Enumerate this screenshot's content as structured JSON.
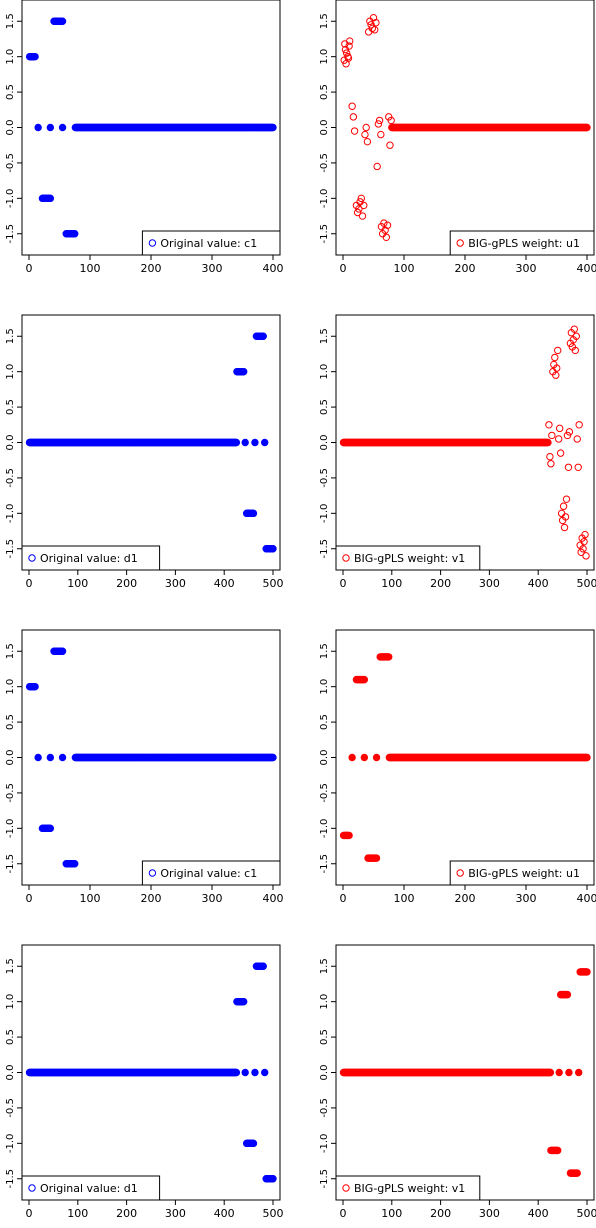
{
  "figure": {
    "panels": [
      {
        "title": "",
        "legend": "Original value: c1",
        "color": "#0000ff",
        "xlim": [
          0,
          400
        ],
        "xticks": [
          0,
          100,
          200,
          300,
          400
        ],
        "yticks": [
          1.5,
          1.0,
          0.5,
          0.0,
          -0.5,
          -1.0,
          -1.5
        ],
        "legend_position": "bottom-right"
      },
      {
        "title": "",
        "legend": "BIG-gPLS weight: u1",
        "color": "#ff0000",
        "xlim": [
          0,
          400
        ],
        "xticks": [
          0,
          100,
          200,
          300,
          400
        ],
        "yticks": [
          1.5,
          1.0,
          0.5,
          0.0,
          -0.5,
          -1.0,
          -1.5
        ],
        "legend_position": "bottom-right"
      },
      {
        "title": "",
        "legend": "Original value: d1",
        "color": "#0000ff",
        "xlim": [
          0,
          500
        ],
        "xticks": [
          0,
          100,
          200,
          300,
          400,
          500
        ],
        "yticks": [
          1.5,
          1.0,
          0.5,
          0.0,
          -0.5,
          -1.0,
          -1.5
        ],
        "legend_position": "bottom-left"
      },
      {
        "title": "",
        "legend": "BIG-gPLS weight: v1",
        "color": "#ff0000",
        "xlim": [
          0,
          500
        ],
        "xticks": [
          0,
          100,
          200,
          300,
          400,
          500
        ],
        "yticks": [
          1.5,
          1.0,
          0.5,
          0.0,
          -0.5,
          -1.0,
          -1.5
        ],
        "legend_position": "bottom-left"
      },
      {
        "title": "",
        "legend": "Original value: c1",
        "color": "#0000ff",
        "xlim": [
          0,
          400
        ],
        "xticks": [
          0,
          100,
          200,
          300,
          400
        ],
        "yticks": [
          1.5,
          1.0,
          0.5,
          0.0,
          -0.5,
          -1.0,
          -1.5
        ],
        "legend_position": "bottom-right"
      },
      {
        "title": "",
        "legend": "BIG-gPLS weight: u1",
        "color": "#ff0000",
        "xlim": [
          0,
          400
        ],
        "xticks": [
          0,
          100,
          200,
          300,
          400
        ],
        "yticks": [
          1.5,
          1.0,
          0.5,
          0.0,
          -0.5,
          -1.0,
          -1.5
        ],
        "legend_position": "bottom-right"
      },
      {
        "title": "",
        "legend": "Original value: d1",
        "color": "#0000ff",
        "xlim": [
          0,
          500
        ],
        "xticks": [
          0,
          100,
          200,
          300,
          400,
          500
        ],
        "yticks": [
          1.5,
          1.0,
          0.5,
          0.0,
          -0.5,
          -1.0,
          -1.5
        ],
        "legend_position": "bottom-left"
      },
      {
        "title": "",
        "legend": "BIG-gPLS weight: v1",
        "color": "#ff0000",
        "xlim": [
          0,
          500
        ],
        "xticks": [
          0,
          100,
          200,
          300,
          400,
          500
        ],
        "yticks": [
          1.5,
          1.0,
          0.5,
          0.0,
          -0.5,
          -1.0,
          -1.5
        ],
        "legend_position": "bottom-left"
      }
    ]
  },
  "chart_data": [
    {
      "type": "scatter",
      "legend": "Original value: c1",
      "color": "#0000ff",
      "marker": "filled-circle",
      "groups": [
        {
          "x_range": [
            1,
            10
          ],
          "y": 1.0
        },
        {
          "x_range": [
            41,
            55
          ],
          "y": 1.5
        },
        {
          "x_range": [
            22,
            35
          ],
          "y": -1.0
        },
        {
          "x_range": [
            61,
            75
          ],
          "y": -1.5
        },
        {
          "x_points": [
            15,
            35,
            55
          ],
          "y": 0.0
        },
        {
          "x_range": [
            76,
            400
          ],
          "y": 0.0
        }
      ],
      "xlim": [
        0,
        400
      ],
      "ylim": [
        -1.8,
        1.8
      ]
    },
    {
      "type": "scatter",
      "legend": "BIG-gPLS weight: u1",
      "color": "#ff0000",
      "marker": "open-circle",
      "points": [
        [
          2,
          0.95
        ],
        [
          4,
          1.1
        ],
        [
          6,
          1.05
        ],
        [
          8,
          1.0
        ],
        [
          10,
          1.15
        ],
        [
          3,
          1.18
        ],
        [
          5,
          0.9
        ],
        [
          9,
          0.98
        ],
        [
          11,
          1.22
        ],
        [
          15,
          0.3
        ],
        [
          17,
          0.15
        ],
        [
          19,
          -0.05
        ],
        [
          22,
          -1.1
        ],
        [
          24,
          -1.2
        ],
        [
          26,
          -1.15
        ],
        [
          28,
          -1.05
        ],
        [
          30,
          -1.0
        ],
        [
          32,
          -1.25
        ],
        [
          34,
          -1.1
        ],
        [
          36,
          -0.1
        ],
        [
          38,
          0.0
        ],
        [
          40,
          -0.2
        ],
        [
          42,
          1.35
        ],
        [
          44,
          1.5
        ],
        [
          46,
          1.45
        ],
        [
          48,
          1.4
        ],
        [
          50,
          1.55
        ],
        [
          52,
          1.38
        ],
        [
          54,
          1.48
        ],
        [
          56,
          -0.55
        ],
        [
          58,
          0.05
        ],
        [
          60,
          0.1
        ],
        [
          62,
          -0.1
        ],
        [
          63,
          -1.4
        ],
        [
          65,
          -1.5
        ],
        [
          67,
          -1.35
        ],
        [
          69,
          -1.45
        ],
        [
          71,
          -1.55
        ],
        [
          73,
          -1.38
        ],
        [
          75,
          0.15
        ],
        [
          77,
          -0.25
        ],
        [
          79,
          0.1
        ]
      ],
      "zero_range": [
        80,
        400
      ],
      "xlim": [
        0,
        400
      ],
      "ylim": [
        -1.8,
        1.8
      ]
    },
    {
      "type": "scatter",
      "legend": "Original value: d1",
      "color": "#0000ff",
      "marker": "filled-circle",
      "groups": [
        {
          "x_range": [
            1,
            425
          ],
          "y": 0.0
        },
        {
          "x_range": [
            426,
            440
          ],
          "y": 1.0
        },
        {
          "x_range": [
            446,
            460
          ],
          "y": -1.0
        },
        {
          "x_range": [
            466,
            480
          ],
          "y": 1.5
        },
        {
          "x_range": [
            486,
            500
          ],
          "y": -1.5
        },
        {
          "x_points": [
            443,
            463,
            483
          ],
          "y": 0.0
        }
      ],
      "xlim": [
        0,
        500
      ],
      "ylim": [
        -1.8,
        1.8
      ]
    },
    {
      "type": "scatter",
      "legend": "BIG-gPLS weight: v1",
      "color": "#ff0000",
      "marker": "open-circle",
      "points": [
        [
          422,
          0.25
        ],
        [
          424,
          -0.2
        ],
        [
          426,
          -0.3
        ],
        [
          428,
          0.1
        ],
        [
          430,
          1.0
        ],
        [
          432,
          1.1
        ],
        [
          434,
          1.2
        ],
        [
          436,
          0.95
        ],
        [
          438,
          1.05
        ],
        [
          440,
          1.3
        ],
        [
          442,
          0.05
        ],
        [
          444,
          0.2
        ],
        [
          446,
          -0.15
        ],
        [
          448,
          -1.0
        ],
        [
          450,
          -1.1
        ],
        [
          452,
          -0.9
        ],
        [
          454,
          -1.2
        ],
        [
          456,
          -1.05
        ],
        [
          458,
          -0.8
        ],
        [
          460,
          0.1
        ],
        [
          462,
          -0.35
        ],
        [
          464,
          0.15
        ],
        [
          466,
          1.4
        ],
        [
          468,
          1.55
        ],
        [
          470,
          1.35
        ],
        [
          472,
          1.45
        ],
        [
          474,
          1.6
        ],
        [
          476,
          1.3
        ],
        [
          478,
          1.5
        ],
        [
          480,
          0.05
        ],
        [
          482,
          -0.35
        ],
        [
          484,
          0.25
        ],
        [
          486,
          -1.45
        ],
        [
          488,
          -1.55
        ],
        [
          490,
          -1.35
        ],
        [
          492,
          -1.5
        ],
        [
          494,
          -1.4
        ],
        [
          496,
          -1.3
        ],
        [
          498,
          -1.6
        ]
      ],
      "zero_range": [
        1,
        420
      ],
      "xlim": [
        0,
        500
      ],
      "ylim": [
        -1.8,
        1.8
      ]
    },
    {
      "type": "scatter",
      "legend": "Original value: c1",
      "color": "#0000ff",
      "marker": "filled-circle",
      "groups": [
        {
          "x_range": [
            1,
            10
          ],
          "y": 1.0
        },
        {
          "x_range": [
            41,
            55
          ],
          "y": 1.5
        },
        {
          "x_range": [
            22,
            35
          ],
          "y": -1.0
        },
        {
          "x_range": [
            61,
            75
          ],
          "y": -1.5
        },
        {
          "x_points": [
            15,
            35,
            55
          ],
          "y": 0.0
        },
        {
          "x_range": [
            76,
            400
          ],
          "y": 0.0
        }
      ],
      "xlim": [
        0,
        400
      ],
      "ylim": [
        -1.8,
        1.8
      ]
    },
    {
      "type": "scatter",
      "legend": "BIG-gPLS weight: u1",
      "color": "#ff0000",
      "marker": "filled-circle",
      "groups": [
        {
          "x_range": [
            1,
            10
          ],
          "y": -1.1
        },
        {
          "x_range": [
            22,
            35
          ],
          "y": 1.1
        },
        {
          "x_range": [
            41,
            55
          ],
          "y": -1.42
        },
        {
          "x_range": [
            61,
            75
          ],
          "y": 1.42
        },
        {
          "x_points": [
            15,
            35,
            55
          ],
          "y": 0.0
        },
        {
          "x_range": [
            76,
            400
          ],
          "y": 0.0
        }
      ],
      "xlim": [
        0,
        400
      ],
      "ylim": [
        -1.8,
        1.8
      ]
    },
    {
      "type": "scatter",
      "legend": "Original value: d1",
      "color": "#0000ff",
      "marker": "filled-circle",
      "groups": [
        {
          "x_range": [
            1,
            425
          ],
          "y": 0.0
        },
        {
          "x_range": [
            426,
            440
          ],
          "y": 1.0
        },
        {
          "x_range": [
            446,
            460
          ],
          "y": -1.0
        },
        {
          "x_range": [
            466,
            480
          ],
          "y": 1.5
        },
        {
          "x_range": [
            486,
            500
          ],
          "y": -1.5
        },
        {
          "x_points": [
            443,
            463,
            483
          ],
          "y": 0.0
        }
      ],
      "xlim": [
        0,
        500
      ],
      "ylim": [
        -1.8,
        1.8
      ]
    },
    {
      "type": "scatter",
      "legend": "BIG-gPLS weight: v1",
      "color": "#ff0000",
      "marker": "filled-circle",
      "groups": [
        {
          "x_range": [
            1,
            425
          ],
          "y": 0.0
        },
        {
          "x_range": [
            426,
            440
          ],
          "y": -1.1
        },
        {
          "x_range": [
            446,
            460
          ],
          "y": 1.1
        },
        {
          "x_range": [
            466,
            480
          ],
          "y": -1.42
        },
        {
          "x_range": [
            486,
            500
          ],
          "y": 1.42
        },
        {
          "x_points": [
            443,
            463,
            483
          ],
          "y": 0.0
        }
      ],
      "xlim": [
        0,
        500
      ],
      "ylim": [
        -1.8,
        1.8
      ]
    }
  ]
}
